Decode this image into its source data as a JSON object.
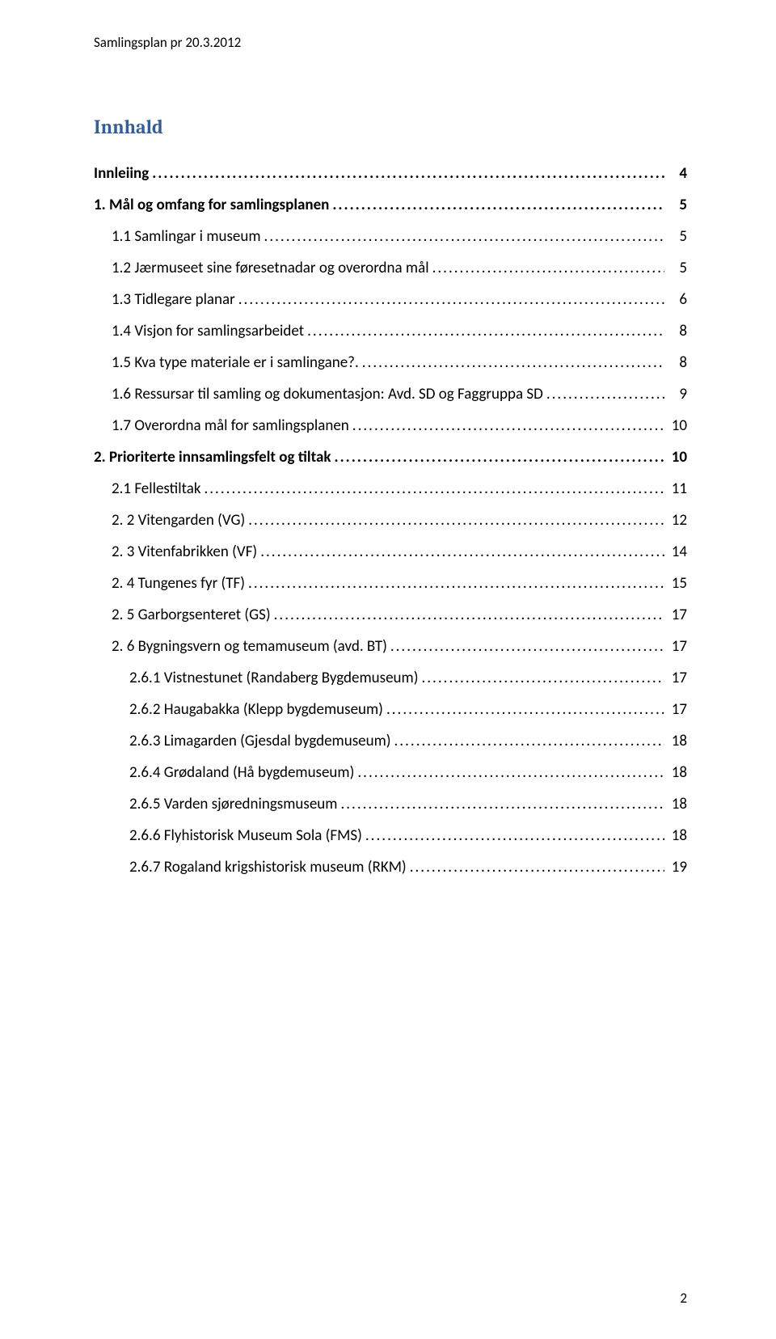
{
  "header": "Samlingsplan pr 20.3.2012",
  "title": "Innhald",
  "footer_page": "2",
  "colors": {
    "title_color": "#365f91",
    "text_color": "#000000",
    "background": "#ffffff"
  },
  "typography": {
    "body_font": "Calibri",
    "title_font": "Cambria",
    "body_size_pt": 11,
    "title_size_pt": 14
  },
  "toc": [
    {
      "level": 0,
      "label": "Innleiing",
      "page": "4"
    },
    {
      "level": 0,
      "label": "1. Mål og omfang for samlingsplanen",
      "page": "5"
    },
    {
      "level": 1,
      "label": "1.1 Samlingar i museum",
      "page": "5"
    },
    {
      "level": 1,
      "label": "1.2 Jærmuseet sine føresetnadar og overordna mål",
      "page": "5"
    },
    {
      "level": 1,
      "label": "1.3 Tidlegare planar",
      "page": "6"
    },
    {
      "level": 1,
      "label": "1.4 Visjon  for samlingsarbeidet",
      "page": "8"
    },
    {
      "level": 1,
      "label": "1.5 Kva type materiale er  i samlingane?.",
      "page": "8"
    },
    {
      "level": 1,
      "label": "1.6 Ressursar til samling og dokumentasjon: Avd. SD og  Faggruppa SD",
      "page": "9"
    },
    {
      "level": 1,
      "label": "1.7   Overordna mål for samlingsplanen",
      "page": "10"
    },
    {
      "level": 0,
      "label": "2. Prioriterte innsamlingsfelt og tiltak",
      "page": "10"
    },
    {
      "level": 1,
      "label": "2.1 Fellestiltak",
      "page": "11"
    },
    {
      "level": 1,
      "label": "2. 2 Vitengarden (VG)",
      "page": "12"
    },
    {
      "level": 1,
      "label": "2. 3 Vitenfabrikken (VF)",
      "page": "14"
    },
    {
      "level": 1,
      "label": "2. 4 Tungenes fyr (TF)",
      "page": "15"
    },
    {
      "level": 1,
      "label": "2. 5 Garborgsenteret (GS)",
      "page": "17"
    },
    {
      "level": 1,
      "label": "2. 6 Bygningsvern og temamuseum (avd. BT)",
      "page": "17"
    },
    {
      "level": 2,
      "label": "2.6.1   Vistnestunet (Randaberg Bygdemuseum)",
      "page": "17"
    },
    {
      "level": 2,
      "label": "2.6.2 Haugabakka (Klepp bygdemuseum)",
      "page": "17"
    },
    {
      "level": 2,
      "label": "2.6.3 Limagarden  (Gjesdal bygdemuseum)",
      "page": "18"
    },
    {
      "level": 2,
      "label": "2.6.4 Grødaland  (Hå bygdemuseum)",
      "page": "18"
    },
    {
      "level": 2,
      "label": "2.6.5 Varden sjøredningsmuseum",
      "page": "18"
    },
    {
      "level": 2,
      "label": "2.6.6 Flyhistorisk Museum Sola (FMS)",
      "page": "18"
    },
    {
      "level": 2,
      "label": "2.6.7 Rogaland krigshistorisk museum (RKM)",
      "page": "19"
    }
  ]
}
